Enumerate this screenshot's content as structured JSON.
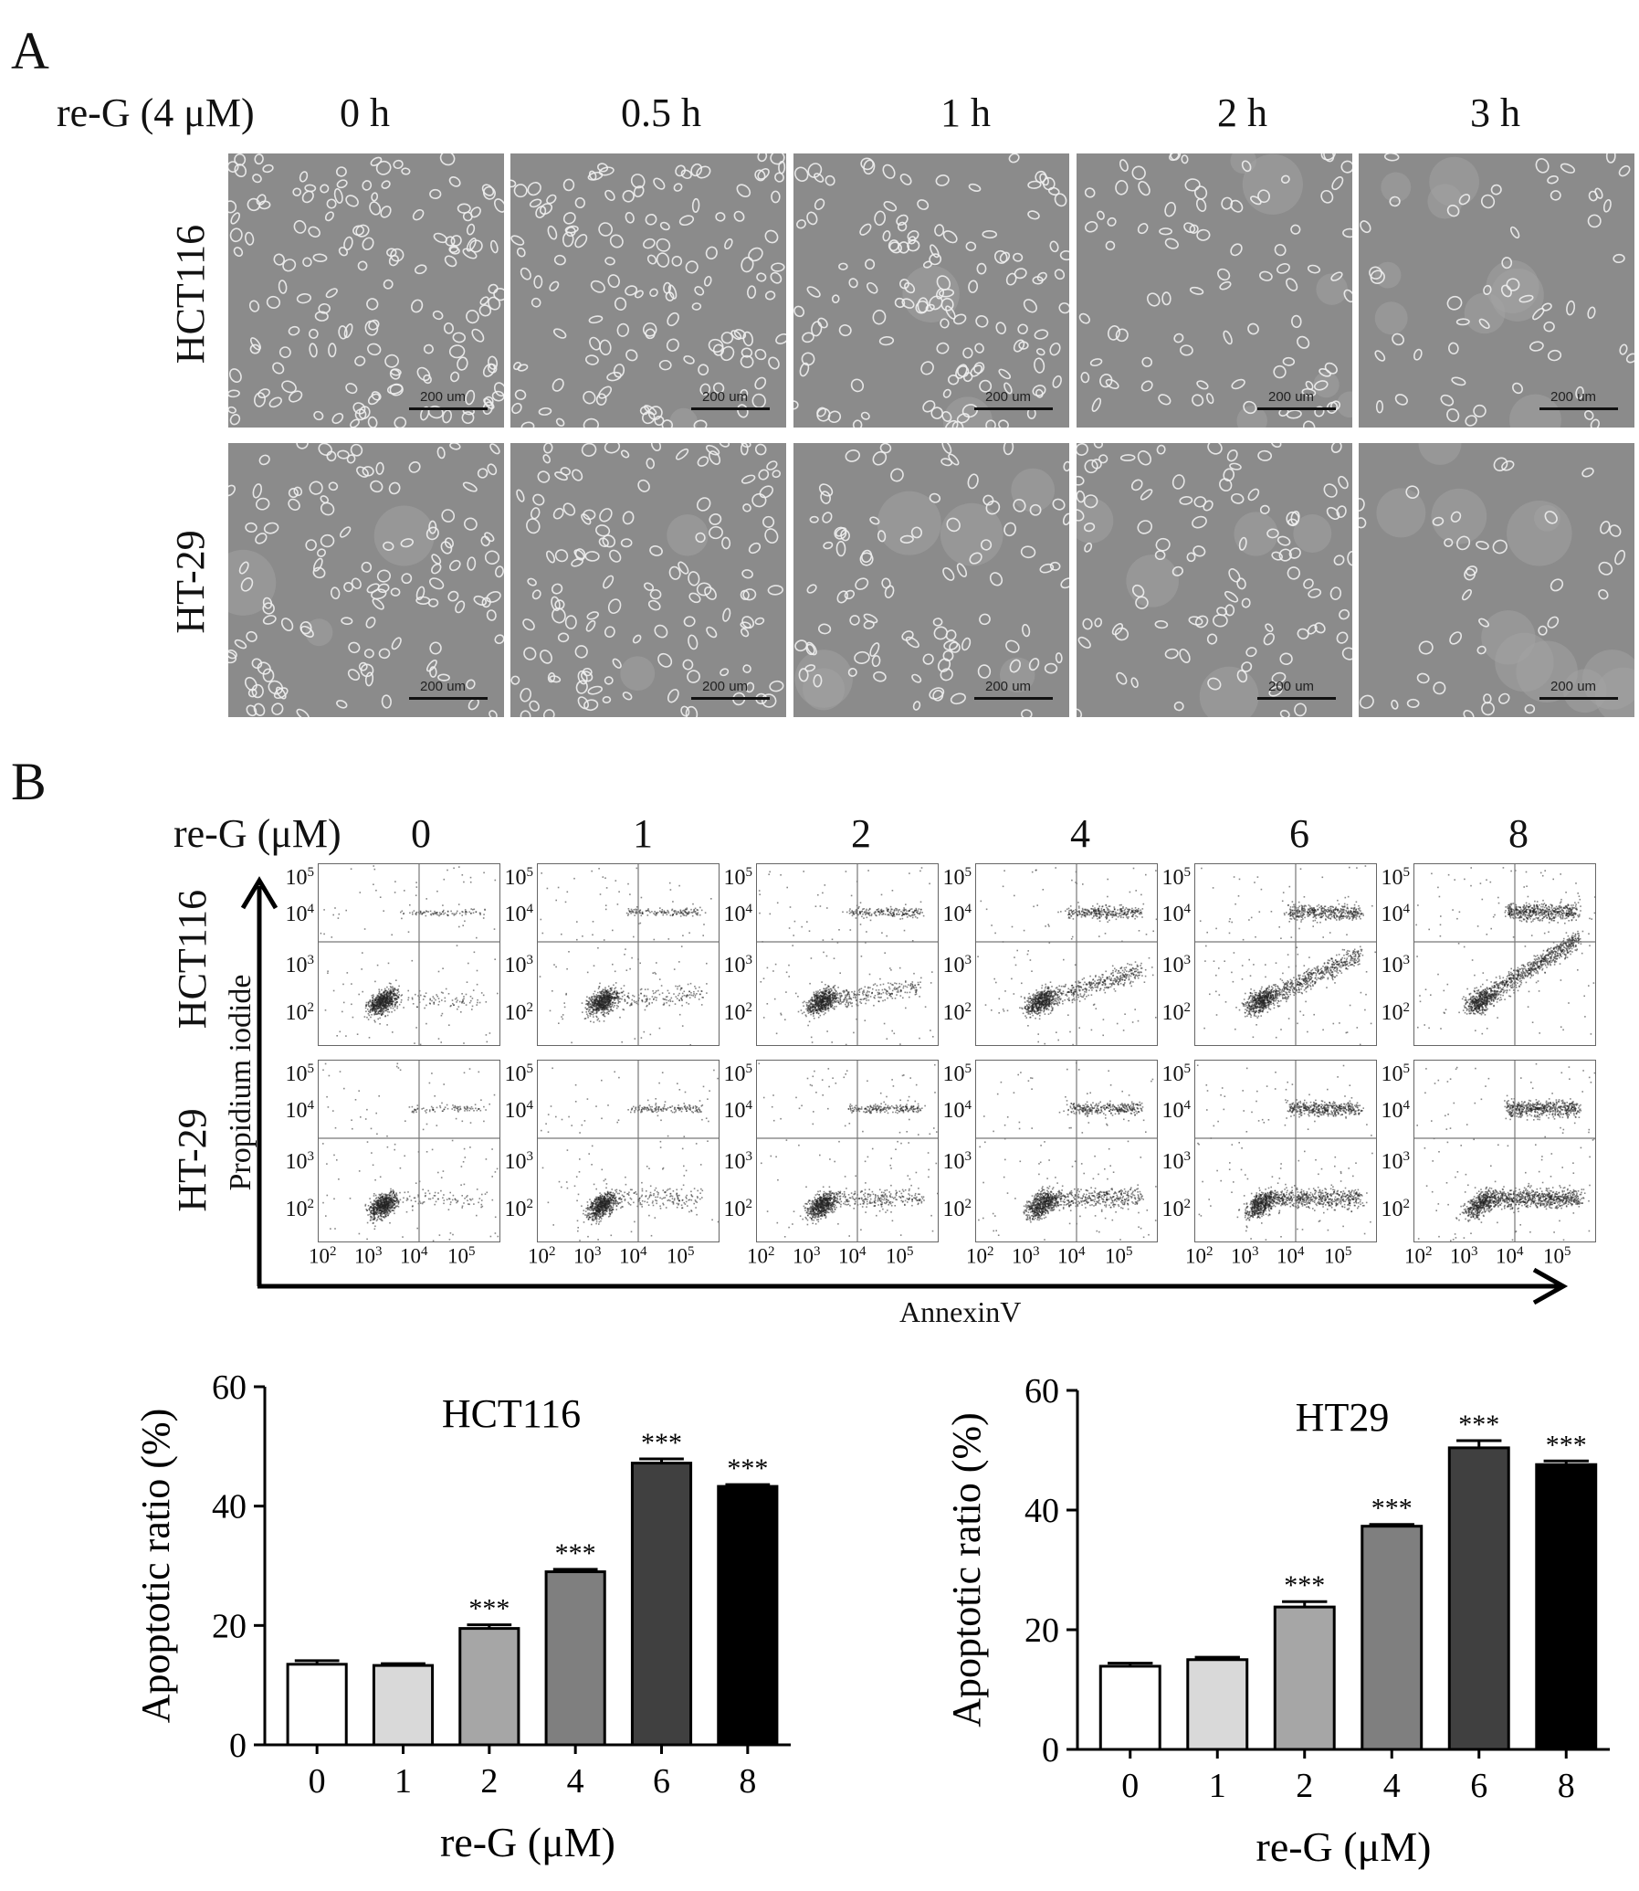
{
  "panel_a": {
    "letter": "A",
    "treatment_label": "re-G (4 μM)",
    "timepoints": [
      "0 h",
      "0.5 h",
      "1 h",
      "2 h",
      "3 h"
    ],
    "rows": [
      "HCT116",
      "HT-29"
    ],
    "scale_bar_label": "200 um",
    "density": [
      [
        1.0,
        0.9,
        0.85,
        0.55,
        0.35
      ],
      [
        0.8,
        0.85,
        0.6,
        0.65,
        0.25
      ]
    ]
  },
  "panel_b": {
    "letter": "B",
    "dose_label": "re-G (μM)",
    "doses": [
      "0",
      "1",
      "2",
      "4",
      "6",
      "8"
    ],
    "rows": [
      "HCT116",
      "HT-29"
    ],
    "y_axis_label": "Propidium iodide",
    "x_axis_label": "AnnexinV",
    "y_ticks": [
      "10",
      "10",
      "10",
      "10"
    ],
    "y_exps": [
      "5",
      "4",
      "3",
      "2"
    ],
    "x_ticks": [
      "10",
      "10",
      "10",
      "10"
    ],
    "x_exps": [
      "2",
      "3",
      "4",
      "5"
    ]
  },
  "chart_data": [
    {
      "type": "bar",
      "title": "HCT116",
      "categories": [
        "0",
        "1",
        "2",
        "4",
        "6",
        "8"
      ],
      "values": [
        13.5,
        13.3,
        19.5,
        29.0,
        47.2,
        43.3
      ],
      "errors": [
        0.6,
        0.3,
        0.6,
        0.4,
        0.7,
        0.3
      ],
      "significance": [
        "",
        "",
        "***",
        "***",
        "***",
        "***"
      ],
      "colors": [
        "#ffffff",
        "#d9d9d9",
        "#a6a6a6",
        "#7f7f7f",
        "#404040",
        "#000000"
      ],
      "xlabel": "re-G (μM)",
      "ylabel": "Apoptotic ratio (%)",
      "ylim": [
        0,
        60
      ],
      "yticks": [
        "0",
        "20",
        "40",
        "60"
      ]
    },
    {
      "type": "bar",
      "title": "HT29",
      "categories": [
        "0",
        "1",
        "2",
        "4",
        "6",
        "8"
      ],
      "values": [
        13.9,
        15.0,
        23.8,
        37.3,
        50.4,
        47.6
      ],
      "errors": [
        0.5,
        0.4,
        0.9,
        0.3,
        1.2,
        0.6
      ],
      "significance": [
        "",
        "",
        "***",
        "***",
        "***",
        "***"
      ],
      "colors": [
        "#ffffff",
        "#d9d9d9",
        "#a6a6a6",
        "#7f7f7f",
        "#404040",
        "#000000"
      ],
      "xlabel": "re-G (μM)",
      "ylabel": "Apoptotic ratio (%)",
      "ylim": [
        0,
        60
      ],
      "yticks": [
        "0",
        "20",
        "40",
        "60"
      ]
    }
  ]
}
